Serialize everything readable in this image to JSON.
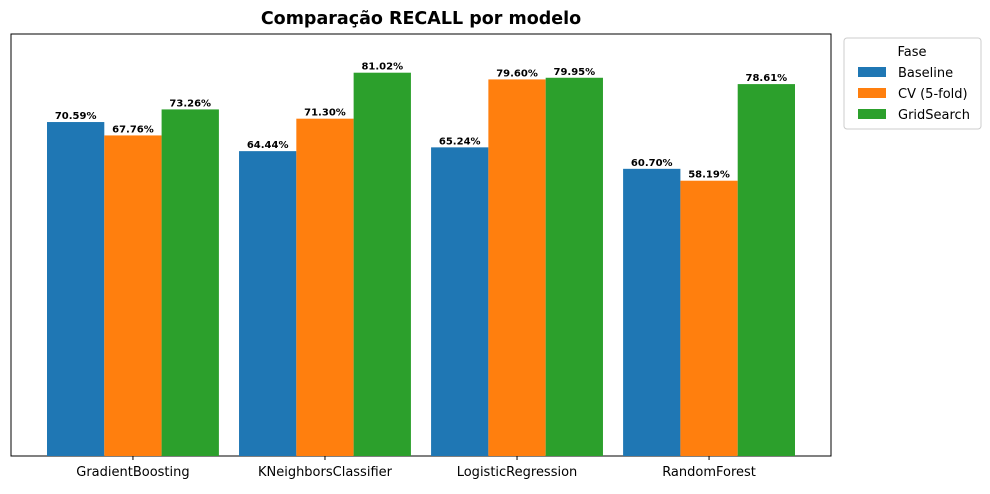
{
  "chart_data": {
    "type": "bar",
    "title": "Comparação RECALL por modelo",
    "xlabel": "",
    "ylabel": "",
    "categories": [
      "GradientBoosting",
      "KNeighborsClassifier",
      "LogisticRegression",
      "RandomForest"
    ],
    "series": [
      {
        "name": "Baseline",
        "color": "#1f77b4",
        "values": [
          70.59,
          64.44,
          65.24,
          60.7
        ],
        "labels": [
          "70.59%",
          "64.44%",
          "65.24%",
          "60.70%"
        ]
      },
      {
        "name": "CV (5-fold)",
        "color": "#ff7f0e",
        "values": [
          67.76,
          71.3,
          79.6,
          58.19
        ],
        "labels": [
          "67.76%",
          "71.30%",
          "79.60%",
          "58.19%"
        ]
      },
      {
        "name": "GridSearch",
        "color": "#2ca02c",
        "values": [
          73.26,
          81.02,
          79.95,
          78.61
        ],
        "labels": [
          "73.26%",
          "81.02%",
          "79.95%",
          "78.61%"
        ]
      }
    ],
    "ylim": [
      0,
      89.2
    ],
    "y_ticks_visible": false,
    "grid": false,
    "legend": {
      "title": "Fase",
      "position": "outside-top-right"
    }
  }
}
